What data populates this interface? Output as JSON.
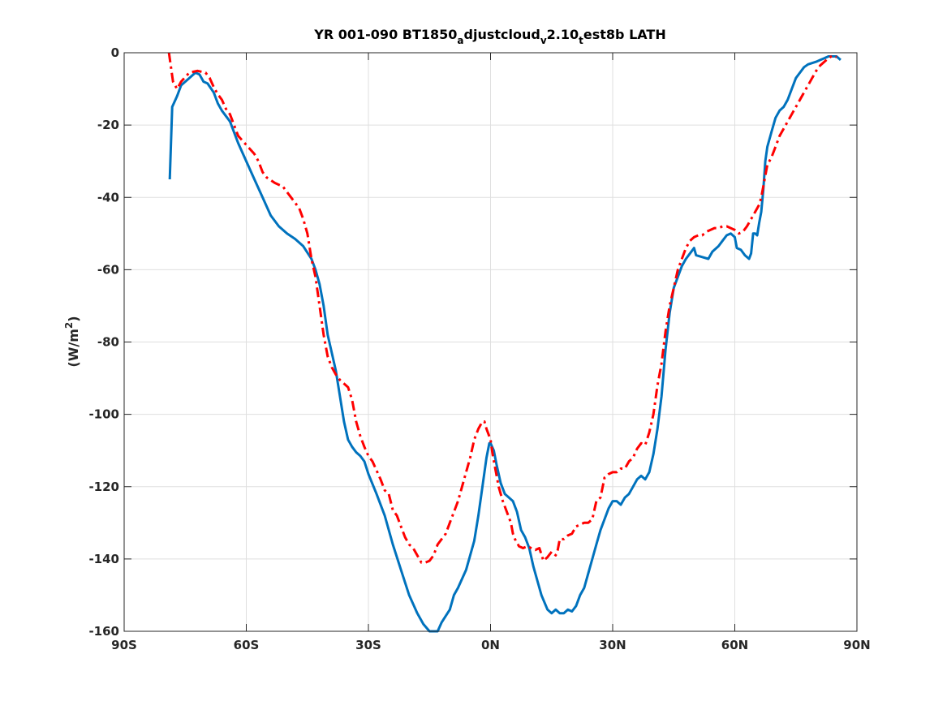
{
  "chart_data": {
    "type": "line",
    "title": {
      "parts": [
        {
          "text": "YR 001-090 BT1850",
          "sub": false
        },
        {
          "text": "a",
          "sub": true
        },
        {
          "text": "djustcloud",
          "sub": false
        },
        {
          "text": "v",
          "sub": true
        },
        {
          "text": "2.10",
          "sub": false
        },
        {
          "text": "t",
          "sub": true
        },
        {
          "text": "est8b LATH",
          "sub": false
        }
      ]
    },
    "ylabel": {
      "prefix": "(W/m",
      "sup": "2",
      "suffix": ")"
    },
    "xlabel": "",
    "xlim": [
      -90,
      90
    ],
    "ylim": [
      -160,
      0
    ],
    "grid": true,
    "xticks": [
      {
        "value": -90,
        "label": "90S"
      },
      {
        "value": -60,
        "label": "60S"
      },
      {
        "value": -30,
        "label": "30S"
      },
      {
        "value": 0,
        "label": "0N"
      },
      {
        "value": 30,
        "label": "30N"
      },
      {
        "value": 60,
        "label": "60N"
      },
      {
        "value": 90,
        "label": "90N"
      }
    ],
    "yticks": [
      {
        "value": 0,
        "label": "0"
      },
      {
        "value": -20,
        "label": "-20"
      },
      {
        "value": -40,
        "label": "-40"
      },
      {
        "value": -60,
        "label": "-60"
      },
      {
        "value": -80,
        "label": "-80"
      },
      {
        "value": -100,
        "label": "-100"
      },
      {
        "value": -120,
        "label": "-120"
      },
      {
        "value": -140,
        "label": "-140"
      },
      {
        "value": -160,
        "label": "-160"
      }
    ],
    "series": [
      {
        "color": "#0072bd",
        "style": "solid",
        "points": [
          [
            -78.8,
            -35
          ],
          [
            -78.2,
            -15
          ],
          [
            -77,
            -12
          ],
          [
            -76,
            -9
          ],
          [
            -74,
            -7
          ],
          [
            -72.5,
            -5.5
          ],
          [
            -71.5,
            -6
          ],
          [
            -70.5,
            -8
          ],
          [
            -69.5,
            -8.5
          ],
          [
            -68,
            -11
          ],
          [
            -67,
            -14
          ],
          [
            -66,
            -16
          ],
          [
            -64,
            -19
          ],
          [
            -62,
            -25
          ],
          [
            -60,
            -30
          ],
          [
            -58,
            -35
          ],
          [
            -56,
            -40
          ],
          [
            -54,
            -45
          ],
          [
            -52,
            -48
          ],
          [
            -50,
            -50
          ],
          [
            -48,
            -51.5
          ],
          [
            -46,
            -53.5
          ],
          [
            -44,
            -57
          ],
          [
            -43,
            -60
          ],
          [
            -42,
            -64
          ],
          [
            -41,
            -70
          ],
          [
            -40,
            -78
          ],
          [
            -39,
            -83
          ],
          [
            -38,
            -88
          ],
          [
            -37,
            -95
          ],
          [
            -36,
            -102
          ],
          [
            -35,
            -107
          ],
          [
            -34,
            -109
          ],
          [
            -33,
            -110.5
          ],
          [
            -32,
            -111.5
          ],
          [
            -31,
            -113
          ],
          [
            -30,
            -116.5
          ],
          [
            -28,
            -122
          ],
          [
            -26,
            -128
          ],
          [
            -24,
            -136
          ],
          [
            -22,
            -143
          ],
          [
            -20,
            -150
          ],
          [
            -18,
            -155
          ],
          [
            -16.5,
            -158
          ],
          [
            -15,
            -160
          ],
          [
            -13,
            -160
          ],
          [
            -12,
            -157.5
          ],
          [
            -10,
            -154
          ],
          [
            -9,
            -150
          ],
          [
            -8,
            -148
          ],
          [
            -6,
            -143
          ],
          [
            -4,
            -135
          ],
          [
            -3,
            -128
          ],
          [
            -2,
            -120
          ],
          [
            -1,
            -112
          ],
          [
            -0.3,
            -108
          ],
          [
            0,
            -108
          ],
          [
            0.8,
            -110
          ],
          [
            1.5,
            -114
          ],
          [
            2.5,
            -119
          ],
          [
            3.5,
            -122
          ],
          [
            4.5,
            -123
          ],
          [
            5.5,
            -124
          ],
          [
            6.5,
            -127
          ],
          [
            7.5,
            -132
          ],
          [
            8.5,
            -134
          ],
          [
            9.5,
            -137
          ],
          [
            10.5,
            -142
          ],
          [
            11.5,
            -146
          ],
          [
            12.5,
            -150
          ],
          [
            14,
            -154
          ],
          [
            15,
            -155
          ],
          [
            16,
            -154
          ],
          [
            17,
            -155
          ],
          [
            18,
            -155
          ],
          [
            19,
            -154
          ],
          [
            20,
            -154.5
          ],
          [
            21,
            -153
          ],
          [
            22,
            -150
          ],
          [
            23,
            -148
          ],
          [
            24,
            -144
          ],
          [
            25,
            -140
          ],
          [
            26,
            -136
          ],
          [
            27,
            -132
          ],
          [
            28,
            -129
          ],
          [
            29,
            -126
          ],
          [
            30,
            -124
          ],
          [
            31,
            -124
          ],
          [
            32,
            -125
          ],
          [
            33,
            -123
          ],
          [
            34,
            -122
          ],
          [
            35,
            -120
          ],
          [
            36,
            -118
          ],
          [
            37,
            -117
          ],
          [
            38,
            -118
          ],
          [
            39,
            -116
          ],
          [
            40,
            -111
          ],
          [
            41,
            -104
          ],
          [
            42,
            -95
          ],
          [
            43,
            -82
          ],
          [
            44,
            -72
          ],
          [
            45,
            -65
          ],
          [
            46,
            -62
          ],
          [
            47,
            -59
          ],
          [
            48,
            -57
          ],
          [
            49,
            -55.5
          ],
          [
            50,
            -54
          ],
          [
            50.5,
            -56
          ],
          [
            52,
            -56.5
          ],
          [
            53.5,
            -57
          ],
          [
            54.5,
            -55
          ],
          [
            56,
            -53.5
          ],
          [
            57,
            -52
          ],
          [
            58,
            -50.5
          ],
          [
            59,
            -50
          ],
          [
            60,
            -51
          ],
          [
            60.5,
            -54
          ],
          [
            61.5,
            -54.5
          ],
          [
            62.5,
            -56
          ],
          [
            63.5,
            -57
          ],
          [
            64,
            -55.5
          ],
          [
            64.5,
            -50
          ],
          [
            65,
            -50
          ],
          [
            65.5,
            -50.5
          ],
          [
            66,
            -47
          ],
          [
            66.5,
            -44
          ],
          [
            67,
            -38
          ],
          [
            67.5,
            -30
          ],
          [
            68,
            -26
          ],
          [
            69,
            -22
          ],
          [
            70,
            -18
          ],
          [
            71,
            -16
          ],
          [
            72,
            -15
          ],
          [
            73,
            -13
          ],
          [
            74,
            -10
          ],
          [
            75,
            -7
          ],
          [
            76,
            -5.5
          ],
          [
            77,
            -4
          ],
          [
            78,
            -3.2
          ],
          [
            80,
            -2.5
          ],
          [
            81,
            -2
          ],
          [
            82,
            -1.5
          ],
          [
            83,
            -1
          ],
          [
            84,
            -1
          ],
          [
            85,
            -1
          ],
          [
            86,
            -2
          ]
        ]
      },
      {
        "color": "#ff0000",
        "style": "dashdot",
        "points": [
          [
            -79,
            0
          ],
          [
            -78.5,
            -4
          ],
          [
            -78,
            -8
          ],
          [
            -77,
            -10
          ],
          [
            -76,
            -8
          ],
          [
            -74,
            -5.5
          ],
          [
            -72,
            -5
          ],
          [
            -70,
            -5.5
          ],
          [
            -69,
            -7
          ],
          [
            -68,
            -9.5
          ],
          [
            -67,
            -11.5
          ],
          [
            -66,
            -13
          ],
          [
            -65,
            -15.5
          ],
          [
            -64,
            -17
          ],
          [
            -62,
            -23
          ],
          [
            -60,
            -25.5
          ],
          [
            -58,
            -28
          ],
          [
            -57,
            -30
          ],
          [
            -56,
            -33
          ],
          [
            -55,
            -34.5
          ],
          [
            -53,
            -36
          ],
          [
            -51,
            -37
          ],
          [
            -49,
            -40
          ],
          [
            -47,
            -43
          ],
          [
            -46,
            -46
          ],
          [
            -45,
            -50
          ],
          [
            -44,
            -57
          ],
          [
            -43,
            -62
          ],
          [
            -42,
            -70
          ],
          [
            -41,
            -78
          ],
          [
            -40,
            -84
          ],
          [
            -39,
            -87
          ],
          [
            -38,
            -89
          ],
          [
            -37,
            -90.5
          ],
          [
            -36,
            -91.5
          ],
          [
            -35,
            -92.5
          ],
          [
            -34,
            -96
          ],
          [
            -33,
            -102
          ],
          [
            -32,
            -106
          ],
          [
            -31,
            -109
          ],
          [
            -30,
            -111.5
          ],
          [
            -29,
            -113
          ],
          [
            -28,
            -115.5
          ],
          [
            -27,
            -118
          ],
          [
            -26,
            -121
          ],
          [
            -25,
            -122
          ],
          [
            -24,
            -126.5
          ],
          [
            -23,
            -128
          ],
          [
            -22,
            -131
          ],
          [
            -21,
            -134
          ],
          [
            -20,
            -136
          ],
          [
            -19,
            -137
          ],
          [
            -18,
            -139
          ],
          [
            -17,
            -141
          ],
          [
            -16,
            -141
          ],
          [
            -15,
            -140.5
          ],
          [
            -14,
            -139
          ],
          [
            -13,
            -136
          ],
          [
            -11,
            -133
          ],
          [
            -10,
            -130
          ],
          [
            -9,
            -127
          ],
          [
            -8,
            -124
          ],
          [
            -7,
            -120
          ],
          [
            -6,
            -116
          ],
          [
            -5,
            -112
          ],
          [
            -4,
            -107
          ],
          [
            -3,
            -104
          ],
          [
            -2,
            -102
          ],
          [
            -1.5,
            -102
          ],
          [
            -1,
            -104
          ],
          [
            0,
            -107
          ],
          [
            0.5,
            -111
          ],
          [
            1,
            -114
          ],
          [
            2,
            -120
          ],
          [
            3,
            -124
          ],
          [
            4,
            -127
          ],
          [
            5,
            -130
          ],
          [
            5.5,
            -133
          ],
          [
            6,
            -134.5
          ],
          [
            7,
            -136.5
          ],
          [
            8,
            -137
          ],
          [
            9,
            -136.5
          ],
          [
            10,
            -137
          ],
          [
            11,
            -137.5
          ],
          [
            12,
            -137
          ],
          [
            13,
            -140.5
          ],
          [
            14,
            -139.5
          ],
          [
            15,
            -138
          ],
          [
            16,
            -139
          ],
          [
            16.5,
            -137.5
          ],
          [
            17,
            -134.5
          ],
          [
            18,
            -134.5
          ],
          [
            19,
            -133.5
          ],
          [
            20,
            -133
          ],
          [
            21,
            -131
          ],
          [
            22,
            -130.5
          ],
          [
            23,
            -130
          ],
          [
            24,
            -130
          ],
          [
            25,
            -129
          ],
          [
            26,
            -124
          ],
          [
            27,
            -123
          ],
          [
            28,
            -117.5
          ],
          [
            29,
            -116.5
          ],
          [
            30,
            -116
          ],
          [
            31,
            -116
          ],
          [
            32,
            -115
          ],
          [
            33,
            -115
          ],
          [
            34,
            -113
          ],
          [
            35,
            -112
          ],
          [
            36,
            -109.5
          ],
          [
            37,
            -108
          ],
          [
            38,
            -108.5
          ],
          [
            39,
            -105
          ],
          [
            40,
            -100
          ],
          [
            41,
            -92
          ],
          [
            42,
            -86
          ],
          [
            43,
            -77
          ],
          [
            44,
            -70
          ],
          [
            45,
            -65
          ],
          [
            46,
            -60
          ],
          [
            47,
            -57
          ],
          [
            48,
            -54
          ],
          [
            49,
            -52
          ],
          [
            50,
            -51
          ],
          [
            51,
            -50.5
          ],
          [
            52,
            -50.5
          ],
          [
            53,
            -49.5
          ],
          [
            54,
            -49
          ],
          [
            55,
            -48.5
          ],
          [
            56,
            -48.5
          ],
          [
            57,
            -48
          ],
          [
            58,
            -48
          ],
          [
            59,
            -48.5
          ],
          [
            60,
            -49
          ],
          [
            61,
            -50
          ],
          [
            62,
            -49.5
          ],
          [
            63,
            -48
          ],
          [
            64,
            -46
          ],
          [
            65,
            -44
          ],
          [
            66,
            -42
          ],
          [
            66.5,
            -40
          ],
          [
            67,
            -37
          ],
          [
            67.5,
            -34
          ],
          [
            68,
            -31
          ],
          [
            69,
            -29
          ],
          [
            70,
            -26
          ],
          [
            71,
            -23
          ],
          [
            72,
            -21
          ],
          [
            73,
            -19
          ],
          [
            74,
            -17
          ],
          [
            75,
            -15
          ],
          [
            76,
            -13
          ],
          [
            77,
            -11
          ],
          [
            78,
            -9
          ],
          [
            79,
            -7
          ],
          [
            80,
            -5
          ],
          [
            81,
            -3.5
          ],
          [
            82,
            -2.5
          ],
          [
            83,
            -1.5
          ],
          [
            84,
            -0.8
          ],
          [
            85,
            -1.2
          ]
        ]
      }
    ]
  }
}
